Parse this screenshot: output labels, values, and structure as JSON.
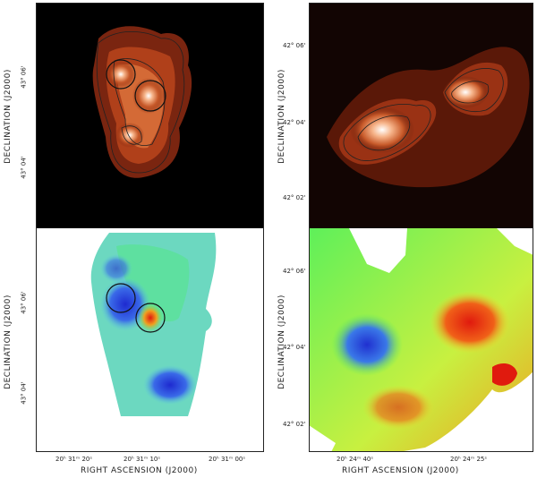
{
  "axes": {
    "ra_label": "RIGHT ASCENSION (J2000)",
    "dec_label": "DECLINATION (J2000)"
  },
  "left_panels": {
    "dec_ticks": [
      "43° 06'",
      "43° 04'"
    ],
    "ra_ticks": [
      "20ʰ 31ᵐ 20ˢ",
      "20ʰ 31ᵐ 10ˢ",
      "20ʰ 31ᵐ 00ˢ"
    ]
  },
  "right_panels": {
    "dec_ticks": [
      "42° 06'",
      "42° 04'",
      "42° 02'"
    ],
    "ra_ticks": [
      "20ʰ 24ᵐ 40ˢ",
      "20ʰ 24ᵐ 25ˢ"
    ]
  },
  "colors": {
    "intensity_bg": "#000000",
    "intensity_mid": "#c0481e",
    "intensity_peak": "#ffffff",
    "velocity_red": "#e01a0e",
    "velocity_green": "#5ef05a",
    "velocity_blue": "#2a3fd8"
  }
}
